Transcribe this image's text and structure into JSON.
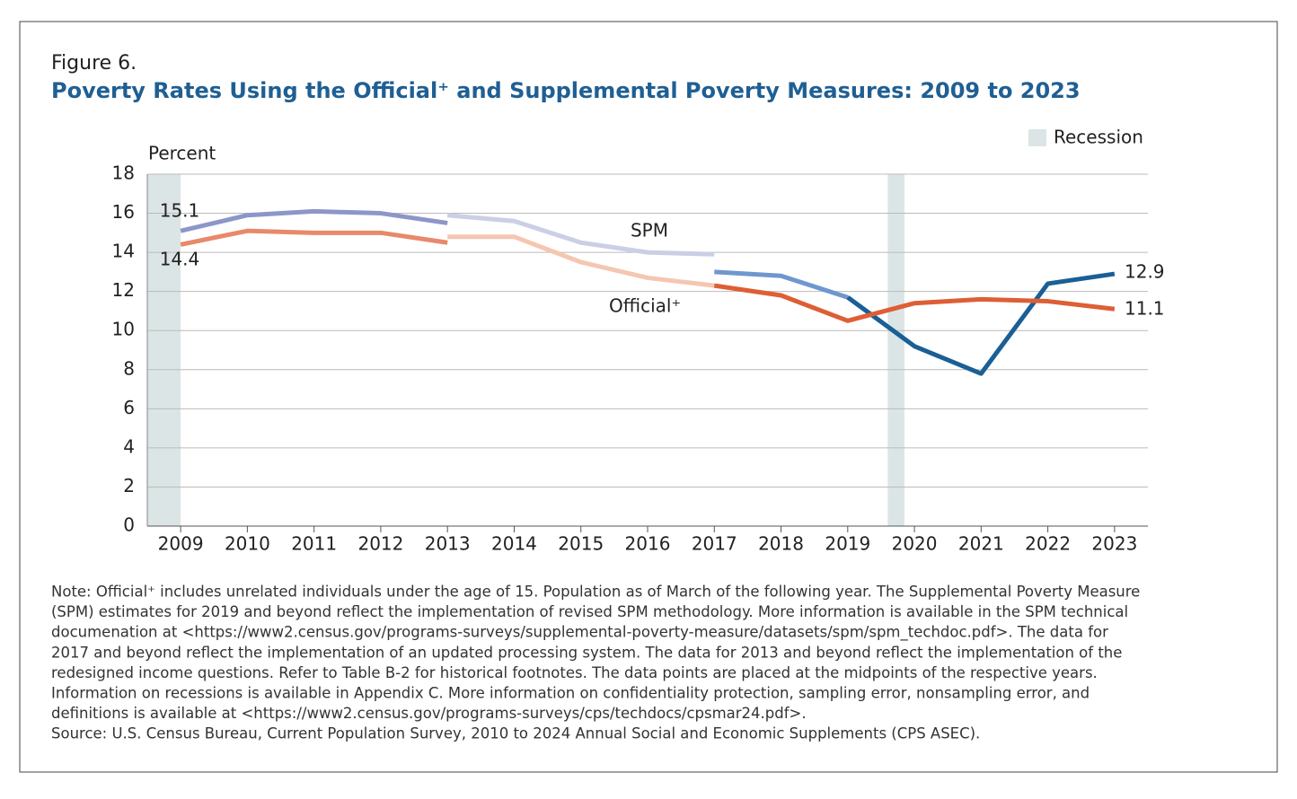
{
  "chart_data": {
    "type": "line",
    "figure_label": "Figure 6.",
    "title": "Poverty Rates Using the Official⁺ and Supplemental Poverty Measures: 2009 to 2023",
    "y_label": "Percent",
    "xlim": [
      2008.5,
      2023.5
    ],
    "xticks": [
      2009,
      2010,
      2011,
      2012,
      2013,
      2014,
      2015,
      2016,
      2017,
      2018,
      2019,
      2020,
      2021,
      2022,
      2023
    ],
    "ylim": [
      0,
      18
    ],
    "yticks": [
      0,
      2,
      4,
      6,
      8,
      10,
      12,
      14,
      16,
      18
    ],
    "grid": true,
    "recession_label": "Recession",
    "recession_color": "#dbe5e5",
    "legend": "upper right",
    "recessions": [
      {
        "start": 2008.5,
        "end": 2009.0
      },
      {
        "start": 2019.6,
        "end": 2019.85
      }
    ],
    "series": [
      {
        "name": "SPM",
        "segments": [
          {
            "color": "#8d96c8",
            "x": [
              2009,
              2010,
              2011,
              2012,
              2013
            ],
            "values": [
              15.1,
              15.9,
              16.1,
              16.0,
              15.5
            ]
          },
          {
            "color": "#cbcfe6",
            "x": [
              2013,
              2014,
              2015,
              2016,
              2017
            ],
            "values": [
              15.9,
              15.6,
              14.5,
              14.0,
              13.9
            ]
          },
          {
            "color": "#6f97cf",
            "x": [
              2017,
              2018,
              2019
            ],
            "values": [
              13.0,
              12.8,
              11.7
            ]
          },
          {
            "color": "#1a5f96",
            "x": [
              2019,
              2020,
              2021,
              2022,
              2023
            ],
            "values": [
              11.7,
              9.2,
              7.8,
              12.4,
              12.9
            ]
          }
        ]
      },
      {
        "name": "Official⁺",
        "segments": [
          {
            "color": "#e8896a",
            "x": [
              2009,
              2010,
              2011,
              2012,
              2013
            ],
            "values": [
              14.4,
              15.1,
              15.0,
              15.0,
              14.5
            ]
          },
          {
            "color": "#f5c6b0",
            "x": [
              2013,
              2014,
              2015,
              2016,
              2017
            ],
            "values": [
              14.8,
              14.8,
              13.5,
              12.7,
              12.3
            ]
          },
          {
            "color": "#de5e35",
            "x": [
              2017,
              2018,
              2019,
              2020,
              2021,
              2022,
              2023
            ],
            "values": [
              12.3,
              11.8,
              10.5,
              11.4,
              11.6,
              11.5,
              11.1
            ]
          }
        ]
      }
    ],
    "notes": [
      "Note: Official⁺ includes unrelated individuals under the age of 15. Population as of March of the following year. The Supplemental Poverty Measure",
      "(SPM) estimates for 2019 and beyond reflect the implementation of revised SPM methodology. More information is available in the SPM technical",
      "documenation at <https://www2.census.gov/programs-surveys/supplemental-poverty-measure/datasets/spm/spm_techdoc.pdf>. The data for",
      "2017 and beyond reflect the implementation of an updated processing system. The data for 2013 and beyond reflect the implementation of the",
      "redesigned income questions. Refer to Table B-2 for historical footnotes. The data points are placed at the midpoints of the respective years.",
      "Information on recessions is available in Appendix C. More information on confidentiality protection, sampling error, nonsampling error, and",
      "definitions is available at <https://www2.census.gov/programs-surveys/cps/techdocs/cpsmar24.pdf>.",
      "Source: U.S. Census Bureau, Current Population Survey, 2010 to 2024 Annual Social and Economic Supplements (CPS ASEC)."
    ]
  }
}
